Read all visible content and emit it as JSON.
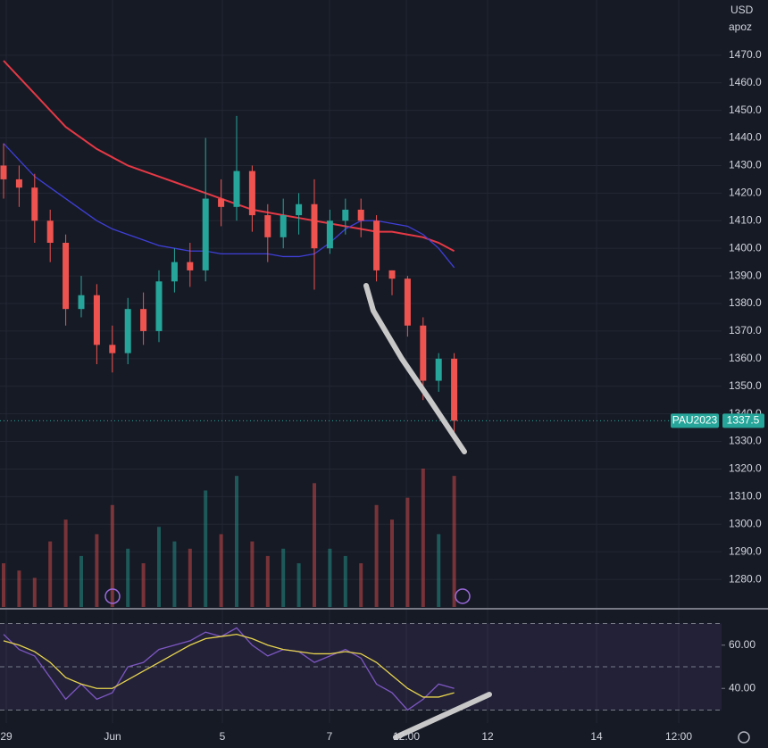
{
  "chart_data": {
    "type": "candlestick",
    "symbol": "PAU2023",
    "currency": "USD",
    "indicator_label": "apoz",
    "open": [
      1430,
      1425,
      1422,
      1410,
      1402,
      1378,
      1383,
      1365,
      1362,
      1378,
      1370,
      1388,
      1395,
      1392,
      1418,
      1415,
      1428,
      1412,
      1404,
      1412,
      1416,
      1400,
      1410,
      1414,
      1410,
      1392,
      1389,
      1372,
      1352,
      1360
    ],
    "high": [
      1438,
      1430,
      1427,
      1414,
      1405,
      1390,
      1387,
      1372,
      1382,
      1384,
      1392,
      1400,
      1402,
      1440,
      1425,
      1448,
      1430,
      1416,
      1418,
      1420,
      1425,
      1414,
      1418,
      1418,
      1412,
      1392,
      1390,
      1375,
      1362,
      1362
    ],
    "low": [
      1418,
      1415,
      1402,
      1395,
      1372,
      1375,
      1358,
      1355,
      1358,
      1365,
      1366,
      1384,
      1386,
      1388,
      1408,
      1410,
      1406,
      1395,
      1400,
      1405,
      1385,
      1398,
      1405,
      1404,
      1388,
      1383,
      1368,
      1345,
      1348,
      1332
    ],
    "close": [
      1425,
      1422,
      1410,
      1402,
      1378,
      1383,
      1365,
      1362,
      1378,
      1370,
      1388,
      1395,
      1392,
      1418,
      1415,
      1428,
      1412,
      1404,
      1412,
      1416,
      1400,
      1410,
      1414,
      1410,
      1392,
      1389,
      1372,
      1352,
      1360,
      1337.5
    ],
    "up_color": "#26a69a",
    "down_color": "#ef5350",
    "series": [
      {
        "color": "#e53945",
        "values": [
          1468,
          1462,
          1456,
          1450,
          1444,
          1440,
          1436,
          1433,
          1430,
          1428,
          1426,
          1424,
          1422,
          1420,
          1418,
          1416,
          1414,
          1413,
          1412,
          1411,
          1410,
          1409,
          1408,
          1407,
          1406,
          1406,
          1405,
          1404,
          1402,
          1399
        ]
      },
      {
        "color": "#3f3fd8",
        "values": [
          1438,
          1432,
          1426,
          1422,
          1418,
          1414,
          1410,
          1407,
          1405,
          1403,
          1401,
          1400,
          1399,
          1399,
          1398,
          1398,
          1398,
          1398,
          1397,
          1397,
          1398,
          1402,
          1407,
          1410,
          1410,
          1409,
          1408,
          1405,
          1400,
          1393
        ]
      }
    ],
    "volume": [
      30,
      25,
      20,
      45,
      60,
      35,
      50,
      70,
      40,
      30,
      55,
      45,
      40,
      80,
      50,
      90,
      45,
      35,
      40,
      30,
      85,
      40,
      35,
      30,
      70,
      60,
      75,
      95,
      50,
      90
    ],
    "last_price": 1337.5,
    "ylim": [
      1270,
      1490
    ],
    "yticks": [
      {
        "value": 1280,
        "label": "1280.0"
      },
      {
        "value": 1290,
        "label": "1290.0"
      },
      {
        "value": 1300,
        "label": "1300.0"
      },
      {
        "value": 1310,
        "label": "1310.0"
      },
      {
        "value": 1320,
        "label": "1320.0"
      },
      {
        "value": 1330,
        "label": "1330.0"
      },
      {
        "value": 1340,
        "label": "1340.0"
      },
      {
        "value": 1350,
        "label": "1350.0"
      },
      {
        "value": 1360,
        "label": "1360.0"
      },
      {
        "value": 1370,
        "label": "1370.0"
      },
      {
        "value": 1380,
        "label": "1380.0"
      },
      {
        "value": 1390,
        "label": "1390.0"
      },
      {
        "value": 1400,
        "label": "1400.0"
      },
      {
        "value": 1410,
        "label": "1410.0"
      },
      {
        "value": 1420,
        "label": "1420.0"
      },
      {
        "value": 1430,
        "label": "1430.0"
      },
      {
        "value": 1440,
        "label": "1440.0"
      },
      {
        "value": 1450,
        "label": "1450.0"
      },
      {
        "value": 1460,
        "label": "1460.0"
      },
      {
        "value": 1470,
        "label": "1470.0"
      }
    ],
    "x_labels": [
      "29",
      "Jun",
      "5",
      "7",
      "12:00",
      "12",
      "14",
      "12:00"
    ],
    "rsi": {
      "values": [
        65,
        58,
        55,
        45,
        35,
        42,
        35,
        38,
        50,
        52,
        58,
        60,
        62,
        66,
        64,
        68,
        60,
        55,
        58,
        57,
        52,
        55,
        58,
        54,
        42,
        38,
        30,
        35,
        42,
        40
      ],
      "signal": [
        62,
        60,
        57,
        52,
        45,
        42,
        40,
        40,
        44,
        48,
        52,
        56,
        60,
        63,
        64,
        65,
        63,
        60,
        58,
        57,
        56,
        56,
        57,
        56,
        52,
        46,
        40,
        36,
        36,
        38
      ],
      "color": "#7e57c2",
      "signal_color": "#e8d44d",
      "levels": [
        70,
        50,
        30
      ],
      "ylim": [
        24,
        76
      ],
      "yticks": [
        {
          "value": 60,
          "label": "60.00"
        },
        {
          "value": 40,
          "label": "40.00"
        }
      ]
    }
  }
}
